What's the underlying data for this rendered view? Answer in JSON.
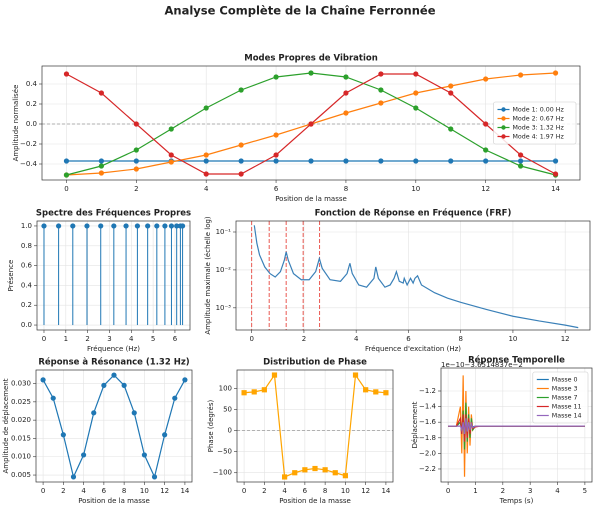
{
  "title": "Analyse Complète de la Chaîne Ferronnée",
  "chart_data": [
    {
      "type": "line",
      "title": "Modes Propres de Vibration",
      "xlabel": "Position de la masse",
      "ylabel": "Amplitude normalisée",
      "x": [
        0,
        1,
        2,
        3,
        4,
        5,
        6,
        7,
        8,
        9,
        10,
        11,
        12,
        13,
        14
      ],
      "xlim": [
        -0.7,
        14.7
      ],
      "xticks": [
        0,
        2,
        4,
        6,
        8,
        10,
        12,
        14
      ],
      "ylim": [
        -0.56,
        0.58
      ],
      "yticks": [
        {
          "value": -0.4,
          "label": "−0.4"
        },
        {
          "value": -0.2,
          "label": "−0.2"
        },
        {
          "value": 0,
          "label": "0.0"
        },
        0.2,
        0.4
      ],
      "grid": true,
      "hline": 0,
      "marker": "o",
      "legend": "center right",
      "series": [
        {
          "name": "Mode 1: 0.00 Hz",
          "color": "#1f77b4",
          "values": [
            -0.37,
            -0.37,
            -0.37,
            -0.37,
            -0.37,
            -0.37,
            -0.37,
            -0.37,
            -0.37,
            -0.37,
            -0.37,
            -0.37,
            -0.37,
            -0.37,
            -0.37
          ]
        },
        {
          "name": "Mode 2: 0.67 Hz",
          "color": "#ff7f0e",
          "values": [
            -0.51,
            -0.49,
            -0.45,
            -0.38,
            -0.31,
            -0.21,
            -0.11,
            0.0,
            0.11,
            0.21,
            0.31,
            0.38,
            0.45,
            0.49,
            0.51
          ]
        },
        {
          "name": "Mode 3: 1.32 Hz",
          "color": "#2ca02c",
          "values": [
            -0.51,
            -0.42,
            -0.26,
            -0.05,
            0.16,
            0.34,
            0.47,
            0.51,
            0.47,
            0.34,
            0.16,
            -0.05,
            -0.26,
            -0.42,
            -0.51
          ]
        },
        {
          "name": "Mode 4: 1.97 Hz",
          "color": "#d62728",
          "values": [
            0.5,
            0.31,
            0.0,
            -0.31,
            -0.5,
            -0.5,
            -0.31,
            0.0,
            0.31,
            0.5,
            0.5,
            0.31,
            0.0,
            -0.31,
            -0.5
          ]
        }
      ]
    },
    {
      "type": "stem",
      "title": "Spectre des Fréquences Propres",
      "xlabel": "Fréquence (Hz)",
      "ylabel": "Présence",
      "x": [
        0,
        0.67,
        1.32,
        1.97,
        2.6,
        3.2,
        3.76,
        4.28,
        4.75,
        5.17,
        5.54,
        5.84,
        6.08,
        6.25,
        6.35
      ],
      "values": [
        1,
        1,
        1,
        1,
        1,
        1,
        1,
        1,
        1,
        1,
        1,
        1,
        1,
        1,
        1
      ],
      "color": "#1f77b4",
      "xlim": [
        -0.32,
        6.69
      ],
      "xticks": [
        0,
        1,
        2,
        3,
        4,
        5,
        6
      ],
      "ylim": [
        -0.05,
        1.05
      ],
      "yticks": [
        {
          "value": 0,
          "label": "0.0"
        },
        0.2,
        0.4,
        0.6,
        0.8,
        {
          "value": 1,
          "label": "1.0"
        }
      ],
      "grid": true
    },
    {
      "type": "line",
      "title": "Fonction de Réponse en Fréquence (FRF)",
      "xlabel": "Fréquence d'excitation (Hz)",
      "ylabel": "Amplitude maximale (échelle log)",
      "x": [
        0.1,
        0.2,
        0.3,
        0.5,
        0.7,
        0.9,
        1.1,
        1.25,
        1.32,
        1.4,
        1.6,
        1.9,
        2.2,
        2.45,
        2.59,
        2.7,
        3.0,
        3.4,
        3.65,
        3.76,
        3.85,
        4.1,
        4.4,
        4.68,
        4.75,
        4.85,
        5.1,
        5.3,
        5.45,
        5.54,
        5.65,
        5.8,
        5.84,
        5.95,
        6.08,
        6.18,
        6.25,
        6.35,
        6.5,
        7.0,
        7.5,
        8.0,
        9.0,
        10.0,
        11.0,
        12.0,
        12.5
      ],
      "log_y": true,
      "grid": true,
      "resonance_lines": [
        0,
        0.67,
        1.32,
        1.97,
        2.6
      ],
      "resonance_color": "#e8473f",
      "xlim": [
        -0.6,
        12.95
      ],
      "xticks": [
        0,
        2,
        4,
        6,
        8,
        10,
        12
      ],
      "ylim": [
        0.00026,
        0.195
      ],
      "yticks": [
        {
          "value": 0.001,
          "label": "10⁻³"
        },
        {
          "value": 0.01,
          "label": "10⁻²"
        },
        {
          "value": 0.1,
          "label": "10⁻¹"
        }
      ],
      "series": [
        {
          "color": "#3a80b8",
          "values": [
            0.15,
            0.05,
            0.025,
            0.012,
            0.008,
            0.0065,
            0.009,
            0.018,
            0.03,
            0.018,
            0.008,
            0.0055,
            0.0055,
            0.009,
            0.02,
            0.011,
            0.0055,
            0.005,
            0.008,
            0.015,
            0.008,
            0.004,
            0.0035,
            0.006,
            0.012,
            0.006,
            0.0035,
            0.004,
            0.006,
            0.009,
            0.005,
            0.0045,
            0.006,
            0.004,
            0.006,
            0.0045,
            0.006,
            0.007,
            0.004,
            0.0025,
            0.0018,
            0.0014,
            0.0009,
            0.0006,
            0.00045,
            0.00035,
            0.0003
          ]
        }
      ]
    },
    {
      "type": "line",
      "title": "Réponse à Résonance (1.32 Hz)",
      "xlabel": "Position de la masse",
      "ylabel": "Amplitude de déplacement",
      "x": [
        0,
        1,
        2,
        3,
        4,
        5,
        6,
        7,
        8,
        9,
        10,
        11,
        12,
        13,
        14
      ],
      "xlim": [
        -0.7,
        14.7
      ],
      "xticks": [
        0,
        2,
        4,
        6,
        8,
        10,
        12,
        14
      ],
      "ylim": [
        0.0031,
        0.0337
      ],
      "yticks": [
        0.005,
        {
          "value": 0.01,
          "label": "0.010"
        },
        0.015,
        {
          "value": 0.02,
          "label": "0.020"
        },
        0.025,
        {
          "value": 0.03,
          "label": "0.030"
        }
      ],
      "grid": true,
      "marker": "o",
      "series": [
        {
          "color": "#1f77b4",
          "values": [
            0.031,
            0.026,
            0.016,
            0.0045,
            0.0105,
            0.022,
            0.0295,
            0.0323,
            0.0295,
            0.022,
            0.0105,
            0.0045,
            0.016,
            0.026,
            0.031
          ]
        }
      ]
    },
    {
      "type": "line",
      "title": "Distribution de Phase",
      "xlabel": "Position de la masse",
      "ylabel": "Phase (degrés)",
      "x": [
        0,
        1,
        2,
        3,
        4,
        5,
        6,
        7,
        8,
        9,
        10,
        11,
        12,
        13,
        14
      ],
      "xlim": [
        -0.7,
        14.7
      ],
      "xticks": [
        0,
        2,
        4,
        6,
        8,
        10,
        12,
        14
      ],
      "ylim": [
        -122,
        144
      ],
      "yticks": [
        {
          "value": -100,
          "label": "−100"
        },
        {
          "value": -50,
          "label": "−50"
        },
        0,
        50,
        100
      ],
      "grid": true,
      "hline": 0,
      "marker": "s",
      "series": [
        {
          "color": "#ffa500",
          "values": [
            90,
            92,
            97,
            132,
            -110,
            -100,
            -93,
            -90,
            -93,
            -100,
            -107,
            132,
            97,
            92,
            90
          ]
        }
      ]
    },
    {
      "type": "line",
      "title": "Réponse Temporelle",
      "xlabel": "Temps (s)",
      "ylabel": "Déplacement",
      "offset_text": "1e−10−3.6514837e−2",
      "x": [
        0,
        0.3,
        0.45,
        0.5,
        0.55,
        0.6,
        0.65,
        0.7,
        0.75,
        0.8,
        0.85,
        0.9,
        1.0,
        1.2,
        1.5,
        2,
        3,
        4,
        5
      ],
      "xlim": [
        -0.26,
        5.26
      ],
      "xticks": [
        0,
        1,
        2,
        3,
        4,
        5
      ],
      "ylim": [
        -2.367,
        -0.905
      ],
      "yticks": [
        {
          "value": -2.2,
          "label": "−2.2"
        },
        {
          "value": -2.0,
          "label": "−2.0"
        },
        {
          "value": -1.8,
          "label": "−1.8"
        },
        {
          "value": -1.6,
          "label": "−1.6"
        },
        {
          "value": -1.4,
          "label": "−1.4"
        },
        {
          "value": -1.2,
          "label": "−1.2"
        }
      ],
      "grid": true,
      "legend": "upper right",
      "series": [
        {
          "name": "Masse 0",
          "color": "#1f77b4",
          "values": [
            -1.65,
            -1.65,
            -1.6,
            -1.7,
            -1.55,
            -1.75,
            -1.6,
            -1.7,
            -1.62,
            -1.68,
            -1.64,
            -1.66,
            -1.65,
            -1.65,
            -1.65,
            -1.65,
            -1.65,
            -1.65,
            -1.65
          ]
        },
        {
          "name": "Masse 3",
          "color": "#ff7f0e",
          "values": [
            -1.65,
            -1.65,
            -1.4,
            -2.0,
            -1.0,
            -2.3,
            -1.2,
            -2.0,
            -1.4,
            -1.9,
            -1.5,
            -1.7,
            -1.65,
            -1.65,
            -1.65,
            -1.65,
            -1.65,
            -1.65,
            -1.65
          ]
        },
        {
          "name": "Masse 7",
          "color": "#2ca02c",
          "values": [
            -1.65,
            -1.65,
            -1.6,
            -1.75,
            -1.45,
            -1.95,
            -1.35,
            -1.85,
            -1.5,
            -1.8,
            -1.55,
            -1.7,
            -1.65,
            -1.65,
            -1.65,
            -1.65,
            -1.65,
            -1.65,
            -1.65
          ]
        },
        {
          "name": "Masse 11",
          "color": "#d62728",
          "values": [
            -1.65,
            -1.65,
            -1.55,
            -1.75,
            -1.5,
            -1.85,
            -1.5,
            -1.8,
            -1.55,
            -1.75,
            -1.6,
            -1.68,
            -1.66,
            -1.65,
            -1.65,
            -1.65,
            -1.65,
            -1.65,
            -1.65
          ]
        },
        {
          "name": "Masse 14",
          "color": "#9467bd",
          "values": [
            -1.65,
            -1.65,
            -1.65,
            -1.7,
            -1.6,
            -1.75,
            -1.55,
            -1.72,
            -1.6,
            -1.7,
            -1.62,
            -1.67,
            -1.65,
            -1.65,
            -1.65,
            -1.65,
            -1.65,
            -1.65,
            -1.65
          ]
        }
      ]
    }
  ]
}
